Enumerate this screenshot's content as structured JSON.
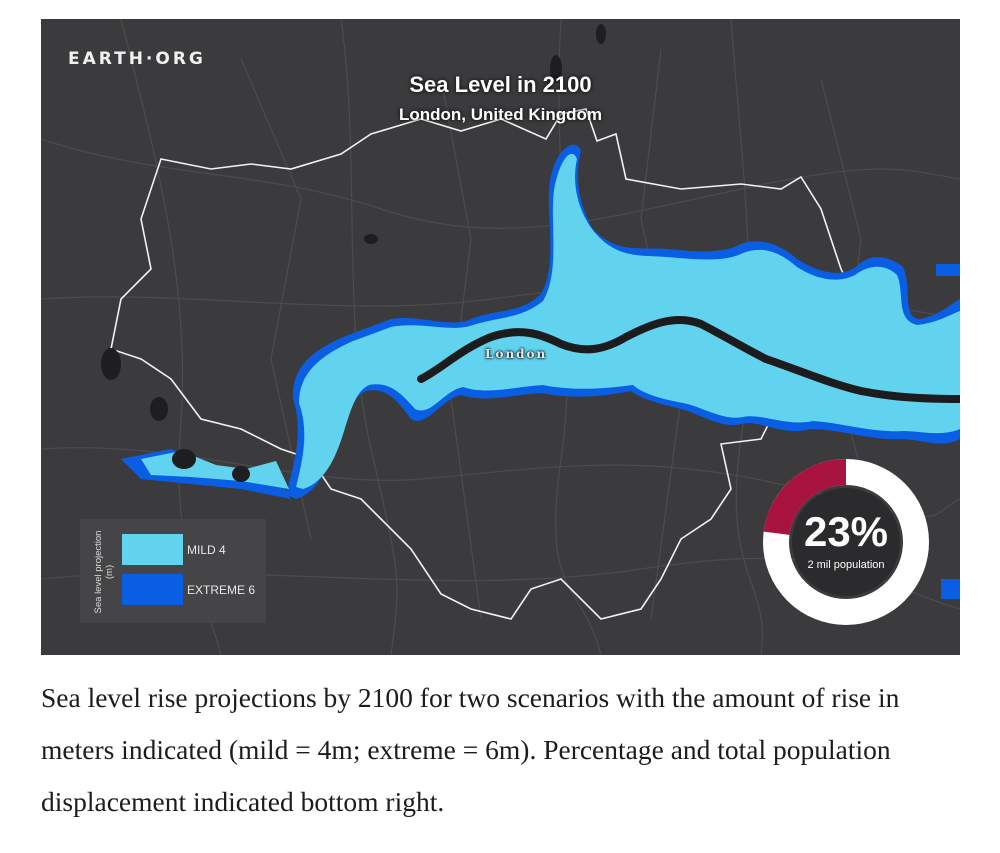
{
  "map": {
    "brand": "EARTH·ORG",
    "title": "Sea Level in 2100",
    "subtitle": "London, United Kingdom",
    "city_label": "London",
    "colors": {
      "background": "#3b3b3d",
      "mild": "#62d3ee",
      "extreme": "#0a5ee4",
      "boundary": "#f2f2f2",
      "river": "#1c1c1e",
      "roads": "#4c4c4f"
    }
  },
  "legend": {
    "axis_label": "Sea level projection (m)",
    "items": [
      {
        "label": "MILD 4",
        "color": "#62d3ee"
      },
      {
        "label": "EXTREME 6",
        "color": "#0a5ee4"
      }
    ]
  },
  "population": {
    "percent_label": "23%",
    "percent_value": 0.23,
    "sublabel": "2 mil population",
    "colors": {
      "affected": "#a8133f",
      "rest": "#ffffff",
      "center": "#2b2b2d"
    }
  },
  "caption": "Sea level rise projections by 2100 for two scenarios with the amount of rise in meters indicated (mild = 4m; extreme = 6m). Percentage and total population displacement indicated bottom right."
}
